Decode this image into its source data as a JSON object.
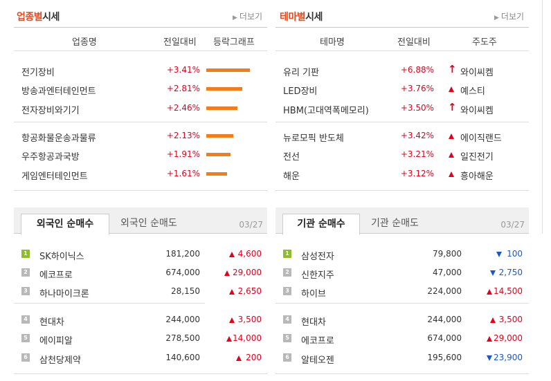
{
  "industry": {
    "title_accent": "업종별",
    "title_rest": "시세",
    "more_label": "더보기",
    "headers": [
      "업종명",
      "전일대비",
      "등락그래프"
    ],
    "rows": [
      {
        "name": "전기장비",
        "change": "+3.41%",
        "value": 3.41
      },
      {
        "name": "방송과엔터테인먼트",
        "change": "+2.81%",
        "value": 2.81
      },
      {
        "name": "전자장비와기기",
        "change": "+2.46%",
        "value": 2.46
      },
      {
        "name": "항공화물운송과물류",
        "change": "+2.13%",
        "value": 2.13
      },
      {
        "name": "우주항공과국방",
        "change": "+1.91%",
        "value": 1.91
      },
      {
        "name": "게임엔터테인먼트",
        "change": "+1.61%",
        "value": 1.61
      }
    ]
  },
  "theme": {
    "title_accent": "테마별",
    "title_rest": "시세",
    "more_label": "더보기",
    "headers": [
      "테마명",
      "전일대비",
      "주도주"
    ],
    "rows": [
      {
        "name": "유리 기판",
        "change": "+6.88%",
        "leader": "와이씨켐",
        "marker": "limit-up"
      },
      {
        "name": "LED장비",
        "change": "+3.76%",
        "leader": "예스티",
        "marker": "up"
      },
      {
        "name": "HBM(고대역폭메모리)",
        "change": "+3.50%",
        "leader": "와이씨켐",
        "marker": "limit-up"
      },
      {
        "name": "뉴로모픽 반도체",
        "change": "+3.42%",
        "leader": "에이직랜드",
        "marker": "up"
      },
      {
        "name": "전선",
        "change": "+3.21%",
        "leader": "일진전기",
        "marker": "up"
      },
      {
        "name": "해운",
        "change": "+3.12%",
        "leader": "흥아해운",
        "marker": "up"
      }
    ]
  },
  "foreign": {
    "tab_active": "외국인 순매수",
    "tab_inactive": "외국인 순매도",
    "date": "03/27",
    "rows": [
      {
        "rank": "1",
        "name": "SK하이닉스",
        "price": "181,200",
        "dir": "up",
        "change": "4,600"
      },
      {
        "rank": "2",
        "name": "에코프로",
        "price": "674,000",
        "dir": "up",
        "change": "29,000"
      },
      {
        "rank": "3",
        "name": "하나마이크론",
        "price": "28,150",
        "dir": "up",
        "change": "2,650"
      },
      {
        "rank": "4",
        "name": "현대차",
        "price": "244,000",
        "dir": "up",
        "change": "3,500"
      },
      {
        "rank": "5",
        "name": "에이피알",
        "price": "278,500",
        "dir": "up",
        "change": "14,000"
      },
      {
        "rank": "6",
        "name": "삼천당제약",
        "price": "140,600",
        "dir": "up",
        "change": "200"
      }
    ]
  },
  "institution": {
    "tab_active": "기관 순매수",
    "tab_inactive": "기관 순매도",
    "date": "03/27",
    "rows": [
      {
        "rank": "1",
        "name": "삼성전자",
        "price": "79,800",
        "dir": "down",
        "change": "100"
      },
      {
        "rank": "2",
        "name": "신한지주",
        "price": "47,000",
        "dir": "down",
        "change": "2,750"
      },
      {
        "rank": "3",
        "name": "하이브",
        "price": "224,000",
        "dir": "up",
        "change": "14,500"
      },
      {
        "rank": "4",
        "name": "현대차",
        "price": "244,000",
        "dir": "up",
        "change": "3,500"
      },
      {
        "rank": "5",
        "name": "에코프로",
        "price": "674,000",
        "dir": "up",
        "change": "29,000"
      },
      {
        "rank": "6",
        "name": "알테오젠",
        "price": "195,600",
        "dir": "down",
        "change": "23,900"
      }
    ]
  },
  "colors": {
    "accent": "#e8491d",
    "up": "#e4001b",
    "down": "#1a57c9",
    "bar": "#f27d1a",
    "rank_top": "#8fbc2b"
  }
}
